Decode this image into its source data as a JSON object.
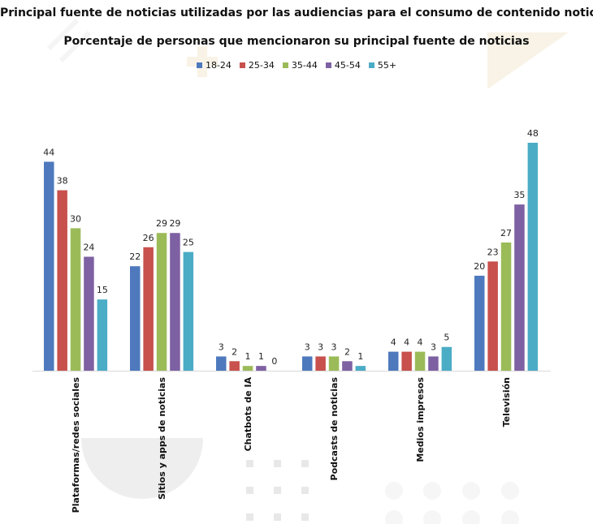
{
  "chart_data": {
    "type": "bar",
    "title": "Principal fuente de noticias utilizadas por las audiencias para el consumo de contenido noticioso",
    "subtitle": "Porcentaje de personas que mencionaron su principal fuente de noticias",
    "categories": [
      "Plataformas/redes sociales",
      "Sitios y apps de noticias",
      "Chatbots de IA",
      "Podcasts de noticias",
      "Medios impresos",
      "Televisión"
    ],
    "series": [
      {
        "name": "18-24",
        "color": "#4e79bd",
        "values": [
          44,
          22,
          3,
          3,
          4,
          20
        ]
      },
      {
        "name": "25-34",
        "color": "#c8504d",
        "values": [
          38,
          26,
          2,
          3,
          4,
          23
        ]
      },
      {
        "name": "35-44",
        "color": "#9bbb59",
        "values": [
          30,
          29,
          1,
          3,
          4,
          27
        ]
      },
      {
        "name": "45-54",
        "color": "#7e61a2",
        "values": [
          24,
          29,
          1,
          2,
          3,
          35
        ]
      },
      {
        "name": "55+",
        "color": "#4bacc6",
        "values": [
          15,
          25,
          0,
          1,
          5,
          48
        ]
      }
    ],
    "ylim": [
      0,
      48
    ],
    "legend_position": "top-center",
    "grid": false,
    "data_labels": true
  }
}
